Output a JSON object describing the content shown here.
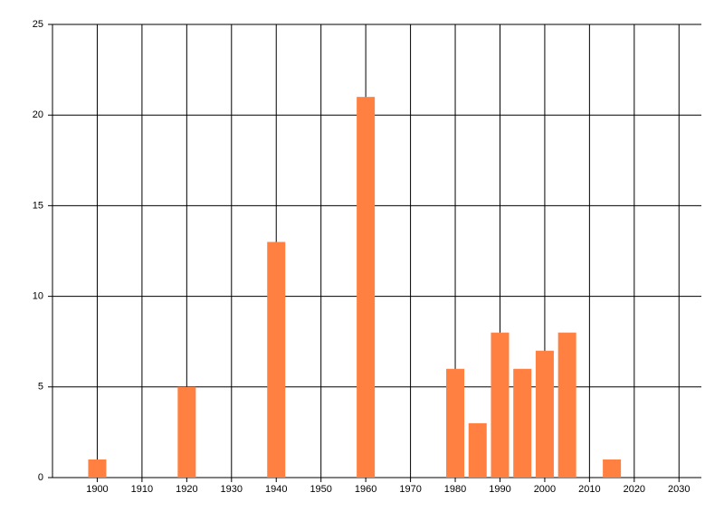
{
  "chart_data": {
    "type": "bar",
    "x": [
      1900,
      1920,
      1940,
      1960,
      1980,
      1985,
      1990,
      1995,
      2000,
      2005,
      2015
    ],
    "values": [
      1,
      5,
      13,
      21,
      6,
      3,
      8,
      6,
      7,
      8,
      1
    ],
    "color": "#ff8040",
    "xlim": [
      1890,
      2035
    ],
    "xticks": [
      1900,
      1910,
      1920,
      1930,
      1940,
      1950,
      1960,
      1970,
      1980,
      1990,
      2000,
      2010,
      2020,
      2030
    ],
    "ylim": [
      0,
      25
    ],
    "yticks": [
      0,
      5,
      10,
      15,
      20,
      25
    ],
    "grid": true
  }
}
